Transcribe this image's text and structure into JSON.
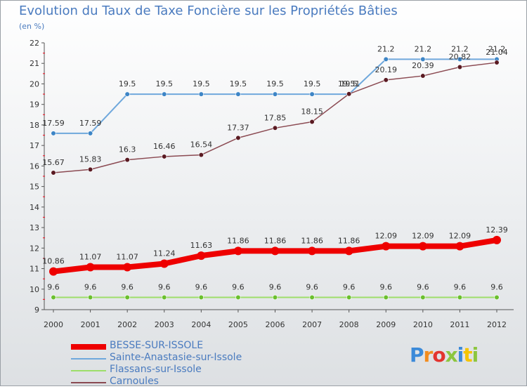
{
  "title": "Evolution du Taux de Taxe Foncière sur les Propriétés Bâties",
  "unit_label": "(en %)",
  "logo": {
    "text": "Proxiti",
    "colors": [
      "#3b8ad9",
      "#f28c1e",
      "#e3342f",
      "#8cc63f",
      "#3b8ad9",
      "#f5c400",
      "#8cc63f"
    ]
  },
  "chart_data": {
    "type": "line",
    "title": "Evolution du Taux de Taxe Foncière sur les Propriétés Bâties",
    "ylabel": "(en %)",
    "xlabel": "",
    "categories": [
      "2000",
      "2001",
      "2002",
      "2003",
      "2004",
      "2005",
      "2006",
      "2007",
      "2008",
      "2009",
      "2010",
      "2011",
      "2012"
    ],
    "ylim": [
      9,
      22
    ],
    "yticks": [
      "9",
      "10",
      "11",
      "12",
      "13",
      "14",
      "15",
      "16",
      "17",
      "18",
      "19",
      "20",
      "21",
      "22"
    ],
    "grid": false,
    "legend_position": "bottom-left",
    "series": [
      {
        "name": "BESSE-SUR-ISSOLE",
        "color": "#ee0000",
        "width": 8,
        "marker": "#ee0000",
        "values": [
          10.86,
          11.07,
          11.07,
          11.24,
          11.63,
          11.86,
          11.86,
          11.86,
          11.86,
          12.09,
          12.09,
          12.09,
          12.39
        ],
        "labels": [
          "10.86",
          "11.07",
          "11.07",
          "11.24",
          "11.63",
          "11.86",
          "11.86",
          "11.86",
          "11.86",
          "12.09",
          "12.09",
          "12.09",
          "12.39"
        ]
      },
      {
        "name": "Sainte-Anastasie-sur-Issole",
        "color": "#6fa8dc",
        "width": 2,
        "marker": "#3d85c6",
        "values": [
          17.59,
          17.59,
          19.5,
          19.5,
          19.5,
          19.5,
          19.5,
          19.5,
          19.5,
          21.2,
          21.2,
          21.2,
          21.2
        ],
        "labels": [
          "17.59",
          "17.59",
          "19.5",
          "19.5",
          "19.5",
          "19.5",
          "19.5",
          "19.5",
          "19.5",
          "21.2",
          "21.2",
          "21.2",
          "21.2"
        ]
      },
      {
        "name": "Flassans-sur-Issole",
        "color": "#9dde6a",
        "width": 2,
        "marker": "#6abf2e",
        "values": [
          9.6,
          9.6,
          9.6,
          9.6,
          9.6,
          9.6,
          9.6,
          9.6,
          9.6,
          9.6,
          9.6,
          9.6,
          9.6
        ],
        "labels": [
          "9.6",
          "9.6",
          "9.6",
          "9.6",
          "9.6",
          "9.6",
          "9.6",
          "9.6",
          "9.6",
          "9.6",
          "9.6",
          "9.6",
          "9.6"
        ]
      },
      {
        "name": "Carnoules",
        "color": "#8b4a52",
        "width": 1.5,
        "marker": "#5a1a22",
        "values": [
          15.67,
          15.83,
          16.3,
          16.46,
          16.54,
          17.37,
          17.85,
          18.15,
          19.51,
          20.19,
          20.39,
          20.82,
          21.04
        ],
        "labels": [
          "15.67",
          "15.83",
          "16.3",
          "16.46",
          "16.54",
          "17.37",
          "17.85",
          "18.15",
          "19.51",
          "20.19",
          "20.39",
          "20.82",
          "21.04"
        ]
      }
    ]
  }
}
